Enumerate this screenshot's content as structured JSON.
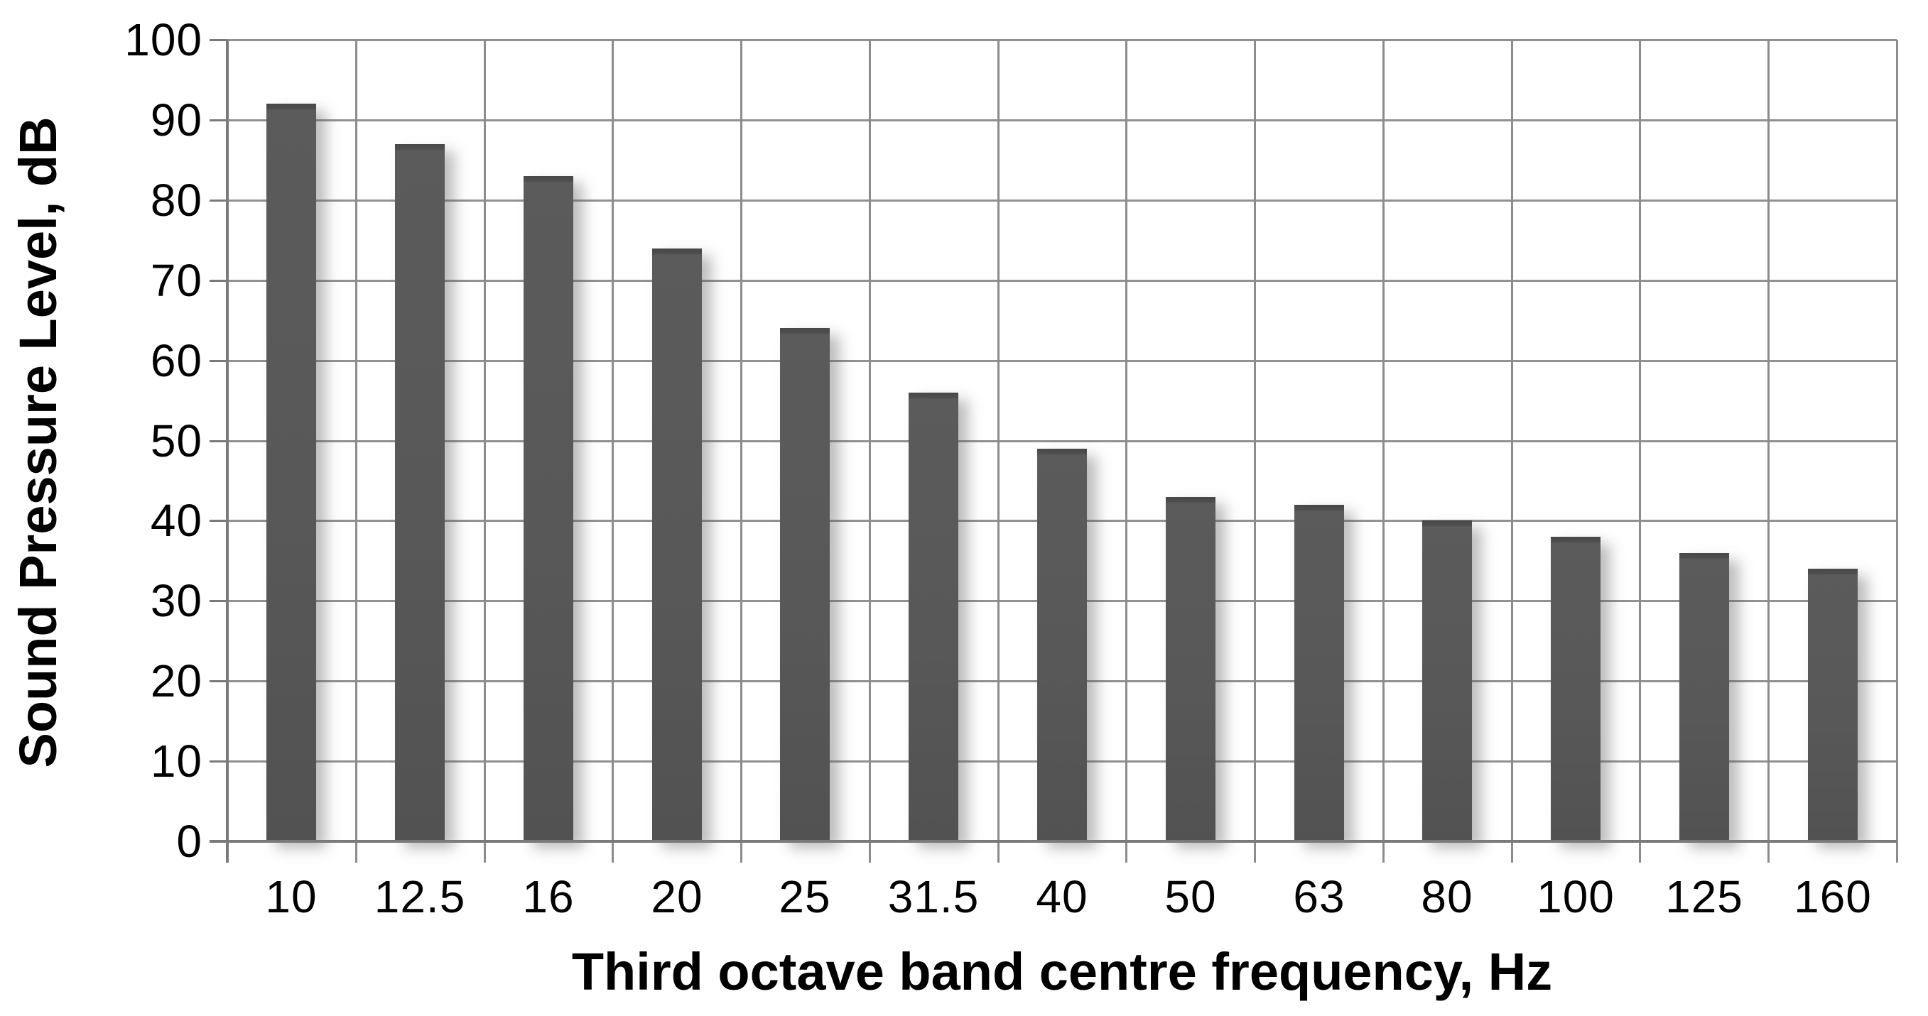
{
  "chart_data": {
    "type": "bar",
    "title": "",
    "categories": [
      "10",
      "12.5",
      "16",
      "20",
      "25",
      "31.5",
      "40",
      "50",
      "63",
      "80",
      "100",
      "125",
      "160"
    ],
    "values": [
      92,
      87,
      83,
      74,
      64,
      56,
      49,
      43,
      42,
      40,
      38,
      36,
      34
    ],
    "series_name": "Sound Pressure Level",
    "xlabel": "Third octave band centre frequency, Hz",
    "ylabel": "Sound Pressure Level, dB",
    "ylim": [
      0,
      100
    ],
    "yticks": [
      0,
      10,
      20,
      30,
      40,
      50,
      60,
      70,
      80,
      90,
      100
    ],
    "grid": true,
    "legend_position": "none",
    "colors": {
      "bar_fill": "#595959",
      "bar_top_cap": "#484848",
      "gridline": "#8c8c8c",
      "axis_line": "#7a7a7a",
      "text": "#000000",
      "background": "#ffffff"
    }
  }
}
